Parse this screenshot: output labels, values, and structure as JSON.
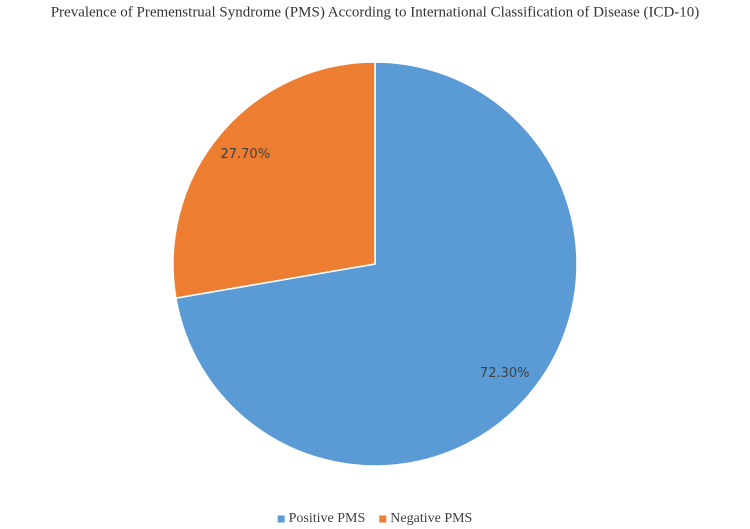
{
  "chart_data": {
    "type": "pie",
    "title": "Prevalence of Premenstrual Syndrome (PMS) According to International Classification of Disease (ICD-10)",
    "categories": [
      "Positive PMS",
      "Negative PMS"
    ],
    "values": [
      72.3,
      27.7
    ],
    "value_labels": [
      "72.30%",
      "27.70%"
    ],
    "colors": [
      "#5b9bd5",
      "#ed7d31"
    ],
    "legend": "bottom"
  }
}
